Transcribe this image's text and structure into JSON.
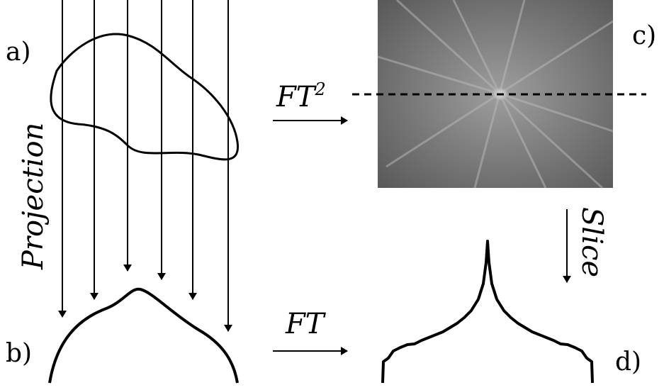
{
  "panels": {
    "a": "a)",
    "b": "b)",
    "c": "c)",
    "d": "d)"
  },
  "labels": {
    "projection": "Projection",
    "ft2": {
      "text": "FT",
      "superscript": "2"
    },
    "ft": "FT",
    "slice": "Slice"
  }
}
